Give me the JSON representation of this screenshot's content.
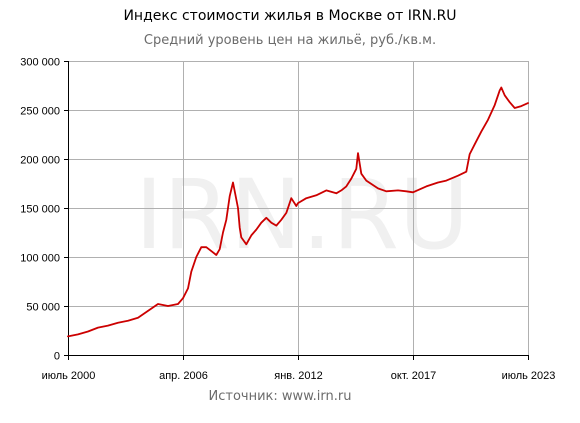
{
  "header": {
    "title": "Индекс стоимости жилья в Москве от IRN.RU",
    "subtitle": "Средний уровень цен на жильё, руб./кв.м."
  },
  "footer": {
    "source": "Источник: www.irn.ru"
  },
  "watermark": "IRN.RU",
  "chart_data": {
    "type": "line",
    "title": "Индекс стоимости жилья в Москве от IRN.RU",
    "subtitle": "Средний уровень цен на жильё, руб./кв.м.",
    "xlabel": "",
    "ylabel": "",
    "ylim": [
      0,
      300000
    ],
    "xlim": [
      "2000-07",
      "2023-07"
    ],
    "grid": true,
    "x_tick_labels": [
      "июль 2000",
      "апр. 2006",
      "янв. 2012",
      "окт. 2017",
      "июль 2023"
    ],
    "x_tick_dates": [
      "2000-07",
      "2006-04",
      "2012-01",
      "2017-10",
      "2023-07"
    ],
    "y_ticks": [
      0,
      50000,
      100000,
      150000,
      200000,
      250000,
      300000
    ],
    "y_tick_labels": [
      "0",
      "50 000",
      "100 000",
      "150 000",
      "200 000",
      "250 000",
      "300 000"
    ],
    "colors": {
      "line": "#cc0000",
      "grid": "#b0b0b0",
      "axis": "#000000"
    },
    "series": [
      {
        "x": [
          "2000-07",
          "2001-01",
          "2001-07",
          "2002-01",
          "2002-07",
          "2003-01",
          "2003-07",
          "2004-01",
          "2004-07",
          "2005-01",
          "2005-07",
          "2006-01",
          "2006-04",
          "2006-07",
          "2006-09",
          "2006-12",
          "2007-03",
          "2007-06",
          "2007-09",
          "2007-12",
          "2008-02",
          "2008-04",
          "2008-06",
          "2008-07",
          "2008-08",
          "2008-10",
          "2009-01",
          "2009-02",
          "2009-03",
          "2009-06",
          "2009-09",
          "2009-12",
          "2010-03",
          "2010-06",
          "2010-09",
          "2010-12",
          "2011-03",
          "2011-06",
          "2011-09",
          "2011-12",
          "2012-01",
          "2012-06",
          "2012-12",
          "2013-06",
          "2013-12",
          "2014-03",
          "2014-06",
          "2014-09",
          "2014-12",
          "2015-01",
          "2015-03",
          "2015-06",
          "2016-01",
          "2016-06",
          "2017-01",
          "2017-06",
          "2017-10",
          "2018-06",
          "2019-01",
          "2019-06",
          "2020-01",
          "2020-06",
          "2020-08",
          "2020-11",
          "2021-03",
          "2021-07",
          "2021-11",
          "2022-02",
          "2022-03",
          "2022-05",
          "2022-08",
          "2022-11",
          "2023-03",
          "2023-07"
        ],
        "values": [
          19000,
          21000,
          24000,
          28000,
          30000,
          33000,
          35000,
          38000,
          45000,
          52000,
          50000,
          52000,
          58000,
          68000,
          85000,
          100000,
          110000,
          110000,
          106000,
          102000,
          108000,
          125000,
          138000,
          150000,
          162000,
          176000,
          150000,
          130000,
          120000,
          113000,
          122000,
          128000,
          135000,
          140000,
          135000,
          132000,
          138000,
          145000,
          160000,
          152000,
          155000,
          160000,
          163000,
          168000,
          165000,
          168000,
          172000,
          180000,
          190000,
          206000,
          185000,
          178000,
          170000,
          167000,
          168000,
          167000,
          166000,
          172000,
          176000,
          178000,
          183000,
          187000,
          205000,
          215000,
          228000,
          240000,
          255000,
          270000,
          273000,
          265000,
          258000,
          252000,
          254000,
          257000
        ]
      }
    ]
  }
}
